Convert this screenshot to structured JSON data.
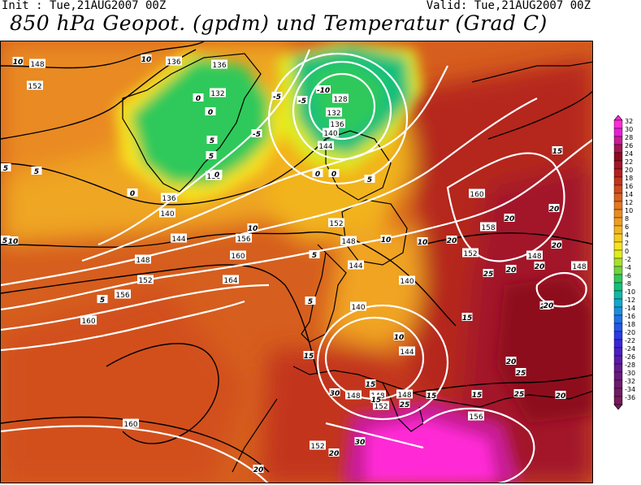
{
  "header": {
    "init": "Init : Tue,21AUG2007 00Z",
    "valid": "Valid: Tue,21AUG2007 00Z",
    "title": "850 hPa Geopot. (gpdm) und Temperatur (Grad C)"
  },
  "legend": {
    "labels": [
      "32",
      "30",
      "28",
      "26",
      "24",
      "22",
      "20",
      "18",
      "16",
      "14",
      "12",
      "10",
      "8",
      "6",
      "4",
      "2",
      "0",
      "-2",
      "-4",
      "-6",
      "-8",
      "-10",
      "-12",
      "-14",
      "-16",
      "-18",
      "-20",
      "-22",
      "-24",
      "-26",
      "-28",
      "-30",
      "-32",
      "-34",
      "-36"
    ],
    "colors": [
      "#ff2bd6",
      "#e81dd6",
      "#c81c94",
      "#a3164e",
      "#8e0a1e",
      "#a3142a",
      "#b51e1e",
      "#c2341a",
      "#cc4a1c",
      "#d96020",
      "#e2781f",
      "#e98a22",
      "#ee9c21",
      "#f2b41e",
      "#f5cc1d",
      "#f7e21d",
      "#e0ec1a",
      "#a8e02a",
      "#6fd53a",
      "#2fc95a",
      "#12c07c",
      "#10b8a8",
      "#10a8d0",
      "#1a8ee0",
      "#1f72e6",
      "#2456e8",
      "#2a3ae6",
      "#3a26d8",
      "#4a1ec4",
      "#5a1aa8",
      "#641a90",
      "#6a1a7e",
      "#6e1a70",
      "#721a64",
      "#761a58"
    ]
  },
  "map": {
    "geopotential_labels_gpdm": [
      "148",
      "152",
      "136",
      "136",
      "132",
      "128",
      "132",
      "136",
      "140",
      "144",
      "136",
      "136",
      "140",
      "144",
      "148",
      "152",
      "156",
      "152",
      "156",
      "160",
      "160",
      "164",
      "156",
      "152",
      "148",
      "144",
      "140",
      "140",
      "144",
      "148",
      "160",
      "158",
      "152",
      "148",
      "148",
      "152",
      "152",
      "160",
      "148",
      "148"
    ],
    "temperature_labels_c": [
      "10",
      "10",
      "0",
      "0",
      "-5",
      "-10",
      "-5",
      "-5",
      "-5",
      "0",
      "0",
      "5",
      "5",
      "5",
      "5",
      "0",
      "0",
      "5",
      "10",
      "10",
      "10",
      "15",
      "15",
      "15",
      "15",
      "5",
      "5",
      "10",
      "15",
      "20",
      "20",
      "20",
      "20",
      "20",
      "25",
      "25",
      "20",
      "20",
      "20",
      "25",
      "30",
      "30",
      "20",
      "20",
      "20",
      "25",
      "20",
      "15",
      "15",
      "5",
      "10",
      "5"
    ]
  }
}
